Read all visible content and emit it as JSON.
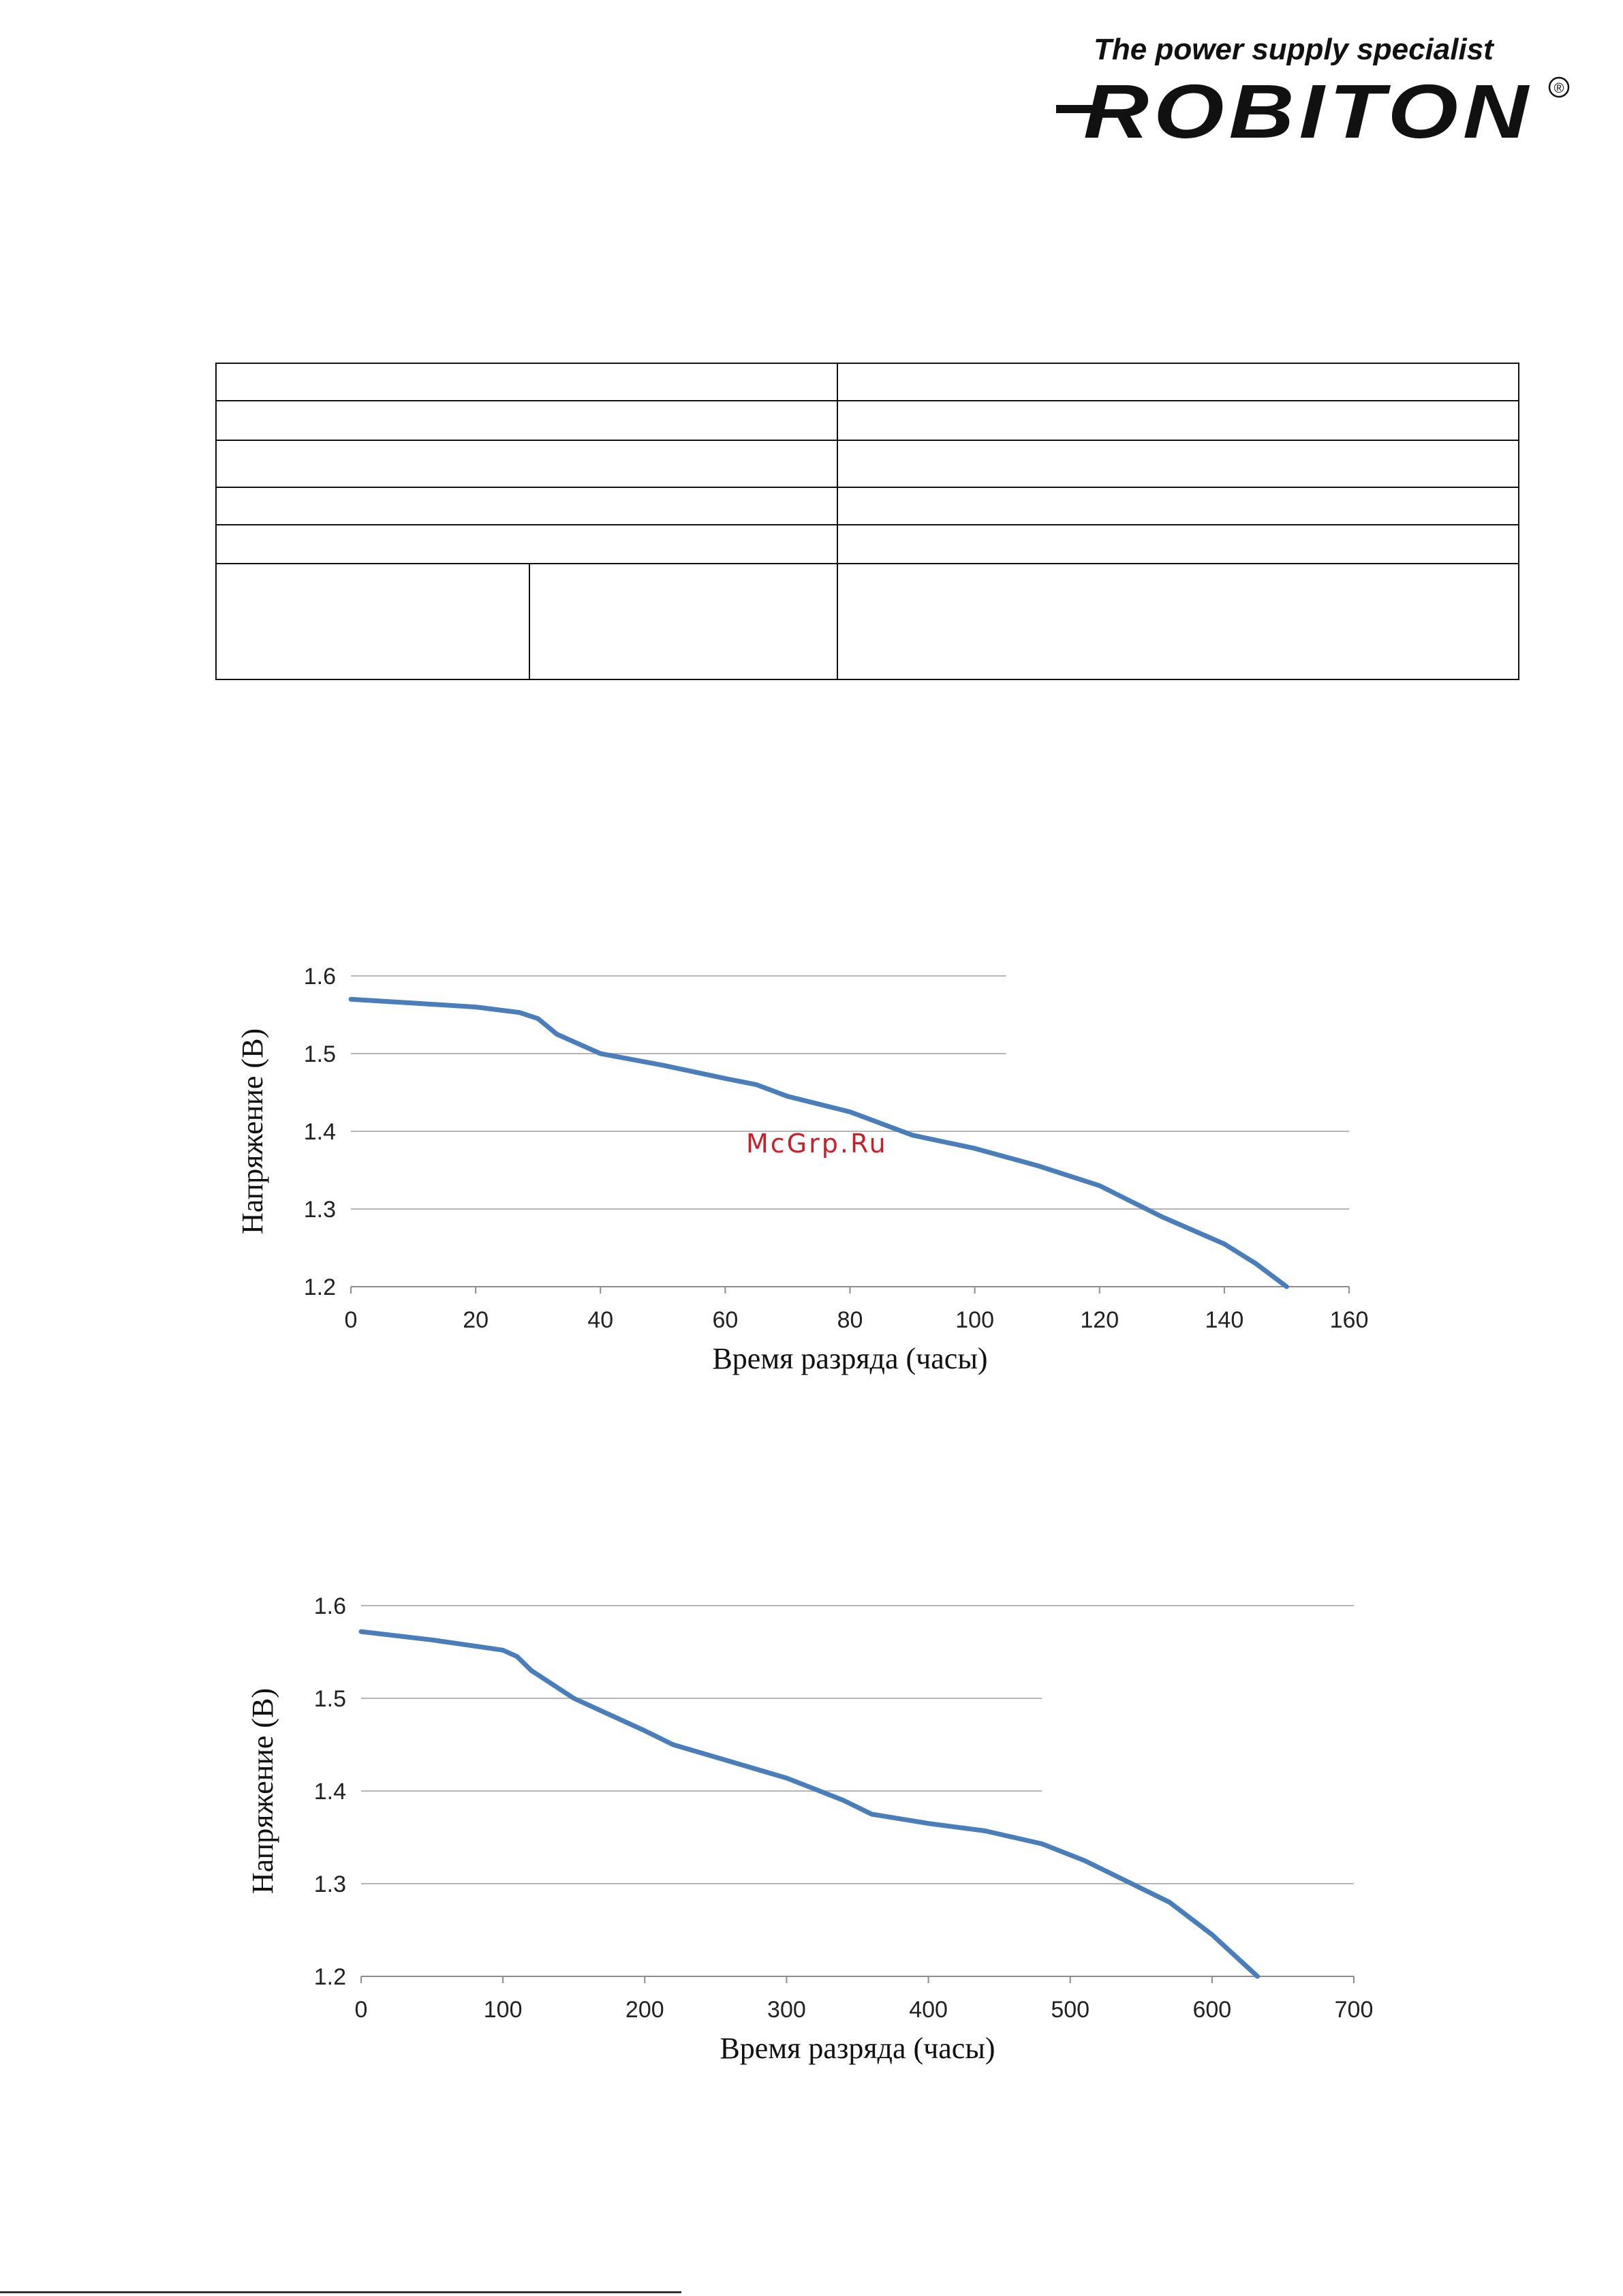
{
  "header": {
    "tagline": "The power supply specialist",
    "brand": "ROBITON",
    "registered_mark": "®"
  },
  "watermark": "McGrp.Ru",
  "chart_data": [
    {
      "type": "line",
      "xlabel": "Время разряда (часы)",
      "ylabel": "Напряжение (В)",
      "xlim": [
        0,
        160
      ],
      "ylim": [
        1.2,
        1.6
      ],
      "xticks": [
        0,
        20,
        40,
        60,
        80,
        100,
        120,
        140,
        160
      ],
      "yticks": [
        1.2,
        1.3,
        1.4,
        1.5,
        1.6
      ],
      "grid": "horizontal",
      "color": "#4a7ebb",
      "x": [
        0,
        10,
        20,
        27,
        30,
        33,
        40,
        50,
        60,
        65,
        70,
        80,
        90,
        100,
        110,
        120,
        125,
        130,
        140,
        145,
        150
      ],
      "y": [
        1.57,
        1.565,
        1.56,
        1.553,
        1.545,
        1.525,
        1.5,
        1.485,
        1.468,
        1.46,
        1.445,
        1.425,
        1.395,
        1.378,
        1.356,
        1.33,
        1.31,
        1.29,
        1.255,
        1.23,
        1.2
      ]
    },
    {
      "type": "line",
      "xlabel": "Время разряда (часы)",
      "ylabel": "Напряжение (В)",
      "xlim": [
        0,
        700
      ],
      "ylim": [
        1.2,
        1.6
      ],
      "xticks": [
        0,
        100,
        200,
        300,
        400,
        500,
        600,
        700
      ],
      "yticks": [
        1.2,
        1.3,
        1.4,
        1.5,
        1.6
      ],
      "grid": "horizontal",
      "color": "#4a7ebb",
      "x": [
        0,
        50,
        100,
        110,
        120,
        150,
        200,
        220,
        260,
        300,
        320,
        340,
        360,
        400,
        440,
        480,
        510,
        530,
        570,
        600,
        632
      ],
      "y": [
        1.572,
        1.563,
        1.552,
        1.545,
        1.53,
        1.5,
        1.465,
        1.45,
        1.432,
        1.414,
        1.402,
        1.39,
        1.375,
        1.365,
        1.357,
        1.343,
        1.325,
        1.31,
        1.28,
        1.245,
        1.2
      ]
    }
  ]
}
